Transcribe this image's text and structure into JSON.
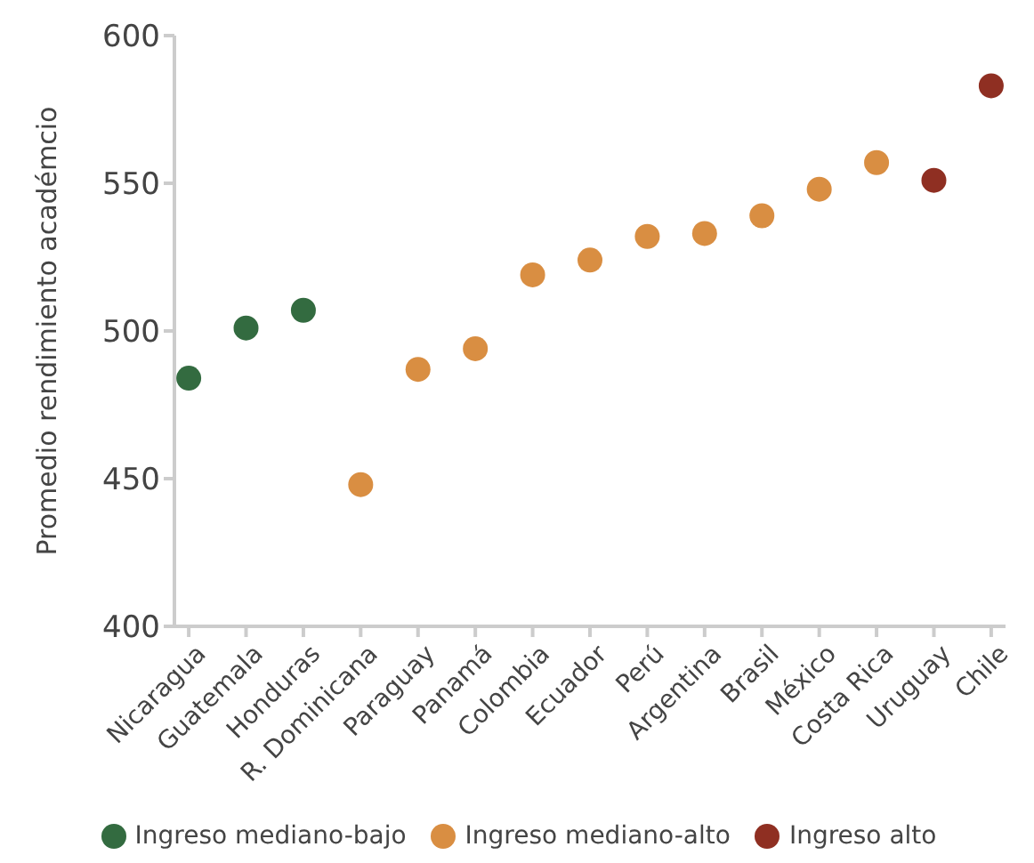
{
  "chart_data": {
    "type": "scatter",
    "ylabel": "Promedio rendimiento académcio",
    "categories": [
      "Nicaragua",
      "Guatemala",
      "Honduras",
      "R. Dominicana",
      "Paraguay",
      "Panamá",
      "Colombia",
      "Ecuador",
      "Perú",
      "Argentina",
      "Brasil",
      "México",
      "Costa Rica",
      "Uruguay",
      "Chile"
    ],
    "series": [
      {
        "name": "Ingreso mediano-bajo",
        "color": "#336b40",
        "values": [
          484,
          501,
          507,
          null,
          null,
          null,
          null,
          null,
          null,
          null,
          null,
          null,
          null,
          null,
          null
        ]
      },
      {
        "name": "Ingreso mediano-alto",
        "color": "#d98e42",
        "values": [
          null,
          null,
          null,
          448,
          487,
          494,
          519,
          524,
          532,
          533,
          539,
          548,
          557,
          null,
          null
        ]
      },
      {
        "name": "Ingreso alto",
        "color": "#8f2f22",
        "values": [
          null,
          null,
          null,
          null,
          null,
          null,
          null,
          null,
          null,
          null,
          null,
          null,
          null,
          551,
          583
        ]
      }
    ],
    "ylim": [
      400,
      600
    ],
    "yticks": [
      400,
      450,
      500,
      550,
      600
    ],
    "grid": false,
    "legend": "bottom",
    "marker": "circle"
  }
}
